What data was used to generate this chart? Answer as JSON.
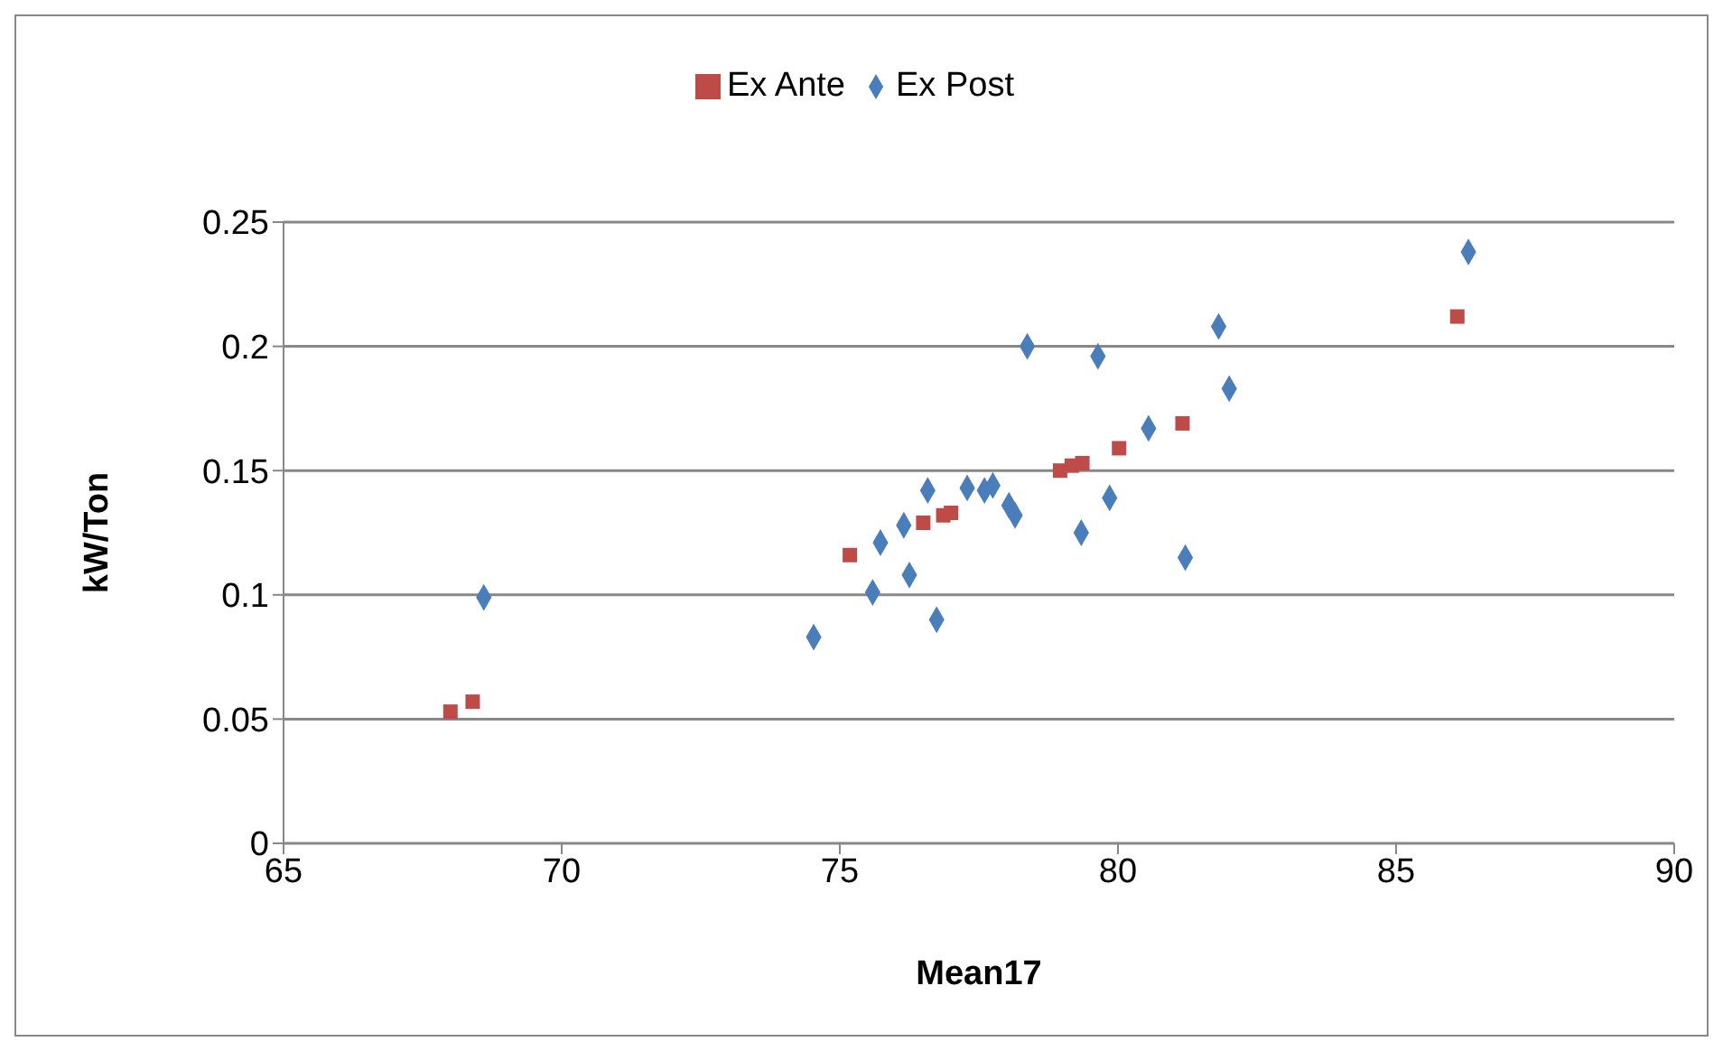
{
  "chart_data": {
    "type": "scatter",
    "xlabel": "Mean17",
    "ylabel": "kW/Ton",
    "xlim": [
      65,
      90
    ],
    "xticks": [
      65,
      70,
      75,
      80,
      85,
      90
    ],
    "ylim": [
      0,
      0.25
    ],
    "yticks": [
      0,
      0.05,
      0.1,
      0.15,
      0.2,
      0.25
    ],
    "grid": "y",
    "legend": "top",
    "series": [
      {
        "name": "Ex Post",
        "color": "#4a7ebb",
        "marker": "diamond",
        "x": [
          68.6,
          74.53,
          75.59,
          75.73,
          76.15,
          76.25,
          76.58,
          76.74,
          77.29,
          77.6,
          77.75,
          78.04,
          78.15,
          78.37,
          79.34,
          79.64,
          79.85,
          80.55,
          81.21,
          81.81,
          82.0,
          86.3
        ],
        "values": [
          0.099,
          0.083,
          0.101,
          0.121,
          0.128,
          0.108,
          0.142,
          0.09,
          0.143,
          0.142,
          0.144,
          0.136,
          0.132,
          0.2,
          0.125,
          0.196,
          0.139,
          0.167,
          0.115,
          0.208,
          0.183,
          0.238
        ]
      },
      {
        "name": "Ex Ante",
        "color": "#be4b48",
        "marker": "square",
        "x": [
          68.0,
          68.4,
          75.18,
          76.5,
          76.86,
          77.0,
          78.96,
          79.17,
          79.36,
          80.02,
          81.16,
          86.1
        ],
        "values": [
          0.053,
          0.057,
          0.116,
          0.129,
          0.132,
          0.133,
          0.15,
          0.152,
          0.153,
          0.159,
          0.169,
          0.212
        ]
      }
    ]
  }
}
